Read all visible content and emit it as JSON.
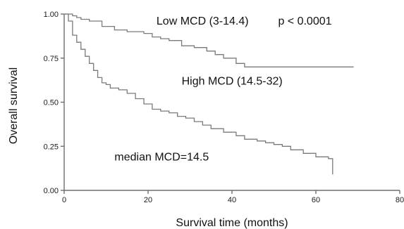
{
  "chart_data": {
    "type": "line",
    "xlabel": "Survival time (months)",
    "ylabel": "Overall survival",
    "xlim": [
      0,
      80
    ],
    "ylim": [
      0,
      1.0
    ],
    "x_ticks": [
      0,
      20,
      40,
      60,
      80
    ],
    "x_tick_labels": [
      "0",
      "20",
      "40",
      "60",
      "80"
    ],
    "y_ticks": [
      0,
      0.25,
      0.5,
      0.75,
      1.0
    ],
    "y_tick_labels": [
      "0.00",
      "0.25",
      "0.50",
      "0.75",
      "1.00"
    ],
    "grid": false,
    "line_color": "#7a7a7a",
    "series": [
      {
        "name": "Low MCD (3-14.4)",
        "step": true,
        "x": [
          0,
          2,
          3,
          4,
          6,
          9,
          12,
          15,
          19,
          21,
          23,
          25,
          28,
          31,
          34,
          36,
          38,
          41,
          43,
          55,
          69
        ],
        "y": [
          1.0,
          0.99,
          0.98,
          0.97,
          0.96,
          0.93,
          0.91,
          0.9,
          0.89,
          0.87,
          0.86,
          0.85,
          0.82,
          0.81,
          0.79,
          0.77,
          0.75,
          0.72,
          0.7,
          0.7,
          0.7
        ]
      },
      {
        "name": "High MCD (14.5-32)",
        "step": true,
        "x": [
          0,
          1,
          2,
          3,
          4,
          5,
          6,
          7,
          8,
          9,
          10,
          11,
          13,
          15,
          17,
          19,
          21,
          23,
          25,
          27,
          29,
          31,
          33,
          35,
          38,
          41,
          43,
          46,
          48,
          50,
          52,
          54,
          57,
          60,
          63,
          64
        ],
        "y": [
          1.0,
          0.96,
          0.88,
          0.84,
          0.8,
          0.76,
          0.72,
          0.68,
          0.64,
          0.61,
          0.6,
          0.58,
          0.57,
          0.55,
          0.52,
          0.49,
          0.46,
          0.45,
          0.44,
          0.42,
          0.41,
          0.39,
          0.37,
          0.35,
          0.33,
          0.31,
          0.29,
          0.28,
          0.27,
          0.26,
          0.25,
          0.23,
          0.21,
          0.19,
          0.18,
          0.09
        ]
      }
    ],
    "annotations": [
      {
        "text": "Low MCD (3-14.4)",
        "x": 22,
        "y": 0.94
      },
      {
        "text": "p < 0.0001",
        "x": 51,
        "y": 0.94
      },
      {
        "text": "High MCD (14.5-32)",
        "x": 28,
        "y": 0.6
      },
      {
        "text": "median MCD=14.5",
        "x": 12,
        "y": 0.17
      }
    ]
  }
}
